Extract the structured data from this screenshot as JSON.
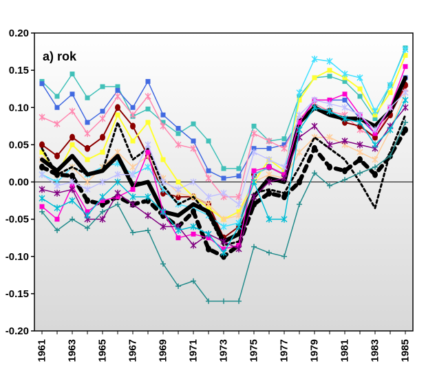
{
  "chart_data": {
    "type": "line",
    "title": "a) rok",
    "xlabel": "",
    "ylabel": "",
    "x": [
      1961,
      1962,
      1963,
      1964,
      1965,
      1966,
      1967,
      1968,
      1969,
      1970,
      1971,
      1972,
      1973,
      1974,
      1975,
      1976,
      1977,
      1978,
      1979,
      1980,
      1981,
      1982,
      1983,
      1984,
      1985
    ],
    "x_tick_labels": [
      "1961",
      "1963",
      "1965",
      "1967",
      "1969",
      "1971",
      "1973",
      "1975",
      "1977",
      "1979",
      "1981",
      "1983",
      "1985"
    ],
    "x_tick_values": [
      1961,
      1963,
      1965,
      1967,
      1969,
      1971,
      1973,
      1975,
      1977,
      1979,
      1981,
      1983,
      1985
    ],
    "ylim": [
      -0.2,
      0.2
    ],
    "y_ticks": [
      -0.2,
      -0.15,
      -0.1,
      -0.05,
      0.0,
      0.05,
      0.1,
      0.15,
      0.2
    ],
    "y_tick_labels": [
      "-0.20",
      "-0.15",
      "-0.10",
      "-0.05",
      "0.00",
      "0.05",
      "0.10",
      "0.15",
      "0.20"
    ],
    "background_gradient": [
      "#ffffff",
      "#d8d8d8"
    ],
    "grid": false,
    "legend": "none",
    "series": [
      {
        "color": "#40c0b8",
        "marker": "square",
        "width": 1.5,
        "values": [
          0.135,
          0.115,
          0.145,
          0.113,
          0.128,
          0.128,
          0.088,
          0.098,
          0.08,
          0.065,
          0.078,
          0.055,
          0.018,
          0.018,
          0.075,
          0.055,
          0.058,
          0.115,
          0.14,
          0.142,
          0.135,
          0.115,
          0.085,
          0.13,
          0.18
        ]
      },
      {
        "color": "#4169e1",
        "marker": "square",
        "width": 1.5,
        "values": [
          0.132,
          0.1,
          0.118,
          0.08,
          0.095,
          0.123,
          0.1,
          0.135,
          0.09,
          0.072,
          0.055,
          0.015,
          0.005,
          0.008,
          0.045,
          0.045,
          0.05,
          0.082,
          0.11,
          0.11,
          0.11,
          0.085,
          0.065,
          0.1,
          0.14
        ]
      },
      {
        "color": "#ff88b0",
        "marker": "star",
        "width": 1.5,
        "values": [
          0.087,
          0.078,
          0.095,
          0.065,
          0.085,
          0.115,
          0.09,
          0.115,
          0.075,
          0.05,
          0.045,
          0.005,
          -0.02,
          -0.02,
          0.065,
          0.055,
          0.045,
          0.085,
          0.105,
          0.095,
          0.09,
          0.07,
          0.06,
          0.095,
          0.125
        ]
      },
      {
        "color": "#8b0000",
        "marker": "circle",
        "width": 2,
        "values": [
          0.05,
          0.035,
          0.06,
          0.045,
          0.06,
          0.1,
          0.075,
          0.035,
          -0.015,
          -0.02,
          -0.02,
          -0.03,
          -0.075,
          -0.06,
          0.01,
          0.02,
          0.01,
          0.08,
          0.1,
          0.095,
          0.08,
          0.075,
          0.06,
          0.09,
          0.13
        ]
      },
      {
        "color": "#ffff30",
        "marker": "square",
        "width": 2,
        "values": [
          0.04,
          0.01,
          0.05,
          0.03,
          0.04,
          0.09,
          0.055,
          0.08,
          0.03,
          0.0,
          -0.02,
          -0.035,
          -0.05,
          -0.04,
          0.0,
          0.03,
          0.015,
          0.11,
          0.14,
          0.15,
          0.14,
          0.125,
          0.09,
          0.12,
          0.17
        ]
      },
      {
        "color": "#40e0ff",
        "marker": "star",
        "width": 1.5,
        "values": [
          0.01,
          0.0,
          0.02,
          0.01,
          0.02,
          0.025,
          0.01,
          0.02,
          -0.01,
          -0.03,
          -0.035,
          -0.045,
          -0.06,
          -0.055,
          0.01,
          0.02,
          0.01,
          0.12,
          0.165,
          0.162,
          0.145,
          0.14,
          0.095,
          0.13,
          0.178
        ]
      },
      {
        "color": "#ffcc99",
        "marker": "star",
        "width": 1.5,
        "values": [
          0.03,
          0.01,
          0.02,
          0.0,
          0.02,
          0.04,
          0.02,
          0.035,
          0.005,
          -0.015,
          -0.02,
          -0.03,
          -0.05,
          -0.045,
          0.0,
          0.01,
          0.005,
          0.04,
          0.06,
          0.06,
          0.05,
          0.04,
          0.03,
          0.07,
          0.12
        ]
      },
      {
        "color": "#000000",
        "marker": "none",
        "width": 6,
        "values": [
          0.03,
          0.015,
          0.035,
          0.01,
          0.015,
          0.035,
          -0.005,
          0.0,
          -0.04,
          -0.045,
          -0.03,
          -0.04,
          -0.08,
          -0.07,
          -0.02,
          0.005,
          0.0,
          0.08,
          0.1,
          0.09,
          0.085,
          0.085,
          0.075,
          0.095,
          0.14
        ]
      },
      {
        "color": "#000000",
        "marker": "none",
        "width": 3,
        "dash": "4 4",
        "values": [
          0.045,
          0.01,
          0.02,
          0.01,
          0.015,
          0.08,
          0.03,
          0.045,
          -0.005,
          -0.03,
          -0.02,
          -0.045,
          -0.085,
          -0.08,
          -0.015,
          -0.01,
          -0.015,
          0.02,
          0.06,
          0.045,
          0.03,
          0.0,
          -0.035,
          0.04,
          0.09
        ]
      },
      {
        "color": "#000000",
        "marker": "circle",
        "width": 6,
        "dash": "8 8",
        "values": [
          0.02,
          0.01,
          0.008,
          -0.025,
          -0.03,
          -0.02,
          -0.03,
          -0.025,
          -0.045,
          -0.06,
          -0.04,
          -0.09,
          -0.1,
          -0.085,
          -0.03,
          -0.015,
          -0.02,
          0.0,
          0.045,
          0.02,
          0.015,
          0.03,
          0.01,
          0.035,
          0.07
        ]
      },
      {
        "color": "#ff00cc",
        "marker": "square",
        "width": 1.5,
        "values": [
          -0.033,
          -0.05,
          -0.005,
          -0.04,
          -0.025,
          -0.02,
          -0.01,
          0.04,
          -0.04,
          -0.075,
          -0.07,
          -0.075,
          -0.09,
          -0.085,
          0.015,
          0.02,
          0.01,
          0.08,
          0.11,
          0.11,
          0.118,
          0.09,
          0.065,
          0.1,
          0.155
        ]
      },
      {
        "color": "#c0c0ff",
        "marker": "star",
        "width": 1.5,
        "values": [
          0.01,
          -0.005,
          0.0,
          -0.01,
          0.0,
          0.01,
          0.01,
          0.05,
          0.0,
          -0.01,
          0.0,
          -0.02,
          -0.015,
          -0.03,
          0.04,
          0.03,
          0.02,
          0.09,
          0.11,
          0.105,
          0.1,
          0.09,
          0.07,
          0.1,
          0.12
        ]
      },
      {
        "color": "#800080",
        "marker": "star",
        "width": 1.5,
        "values": [
          -0.01,
          -0.015,
          -0.01,
          -0.05,
          -0.05,
          -0.015,
          -0.03,
          -0.045,
          -0.06,
          -0.06,
          -0.085,
          -0.07,
          -0.08,
          -0.09,
          -0.02,
          0.0,
          0.005,
          0.06,
          0.075,
          0.05,
          0.055,
          0.05,
          0.045,
          0.075,
          0.1
        ]
      },
      {
        "color": "#00bcd4",
        "marker": "star",
        "width": 1.5,
        "values": [
          -0.022,
          -0.035,
          -0.025,
          -0.045,
          -0.02,
          0.0,
          -0.02,
          -0.02,
          -0.04,
          -0.065,
          -0.06,
          -0.07,
          -0.095,
          -0.06,
          0.0,
          -0.05,
          -0.05,
          0.07,
          0.1,
          0.095,
          0.085,
          0.08,
          0.05,
          0.07,
          0.11
        ]
      },
      {
        "color": "#228b8b",
        "marker": "plus",
        "width": 1.5,
        "values": [
          -0.04,
          -0.065,
          -0.05,
          -0.062,
          -0.04,
          -0.03,
          -0.068,
          -0.065,
          -0.11,
          -0.14,
          -0.133,
          -0.16,
          -0.16,
          -0.16,
          -0.087,
          -0.095,
          -0.1,
          -0.03,
          0.012,
          -0.005,
          0.003,
          0.012,
          0.02,
          0.035,
          0.08
        ]
      }
    ]
  }
}
